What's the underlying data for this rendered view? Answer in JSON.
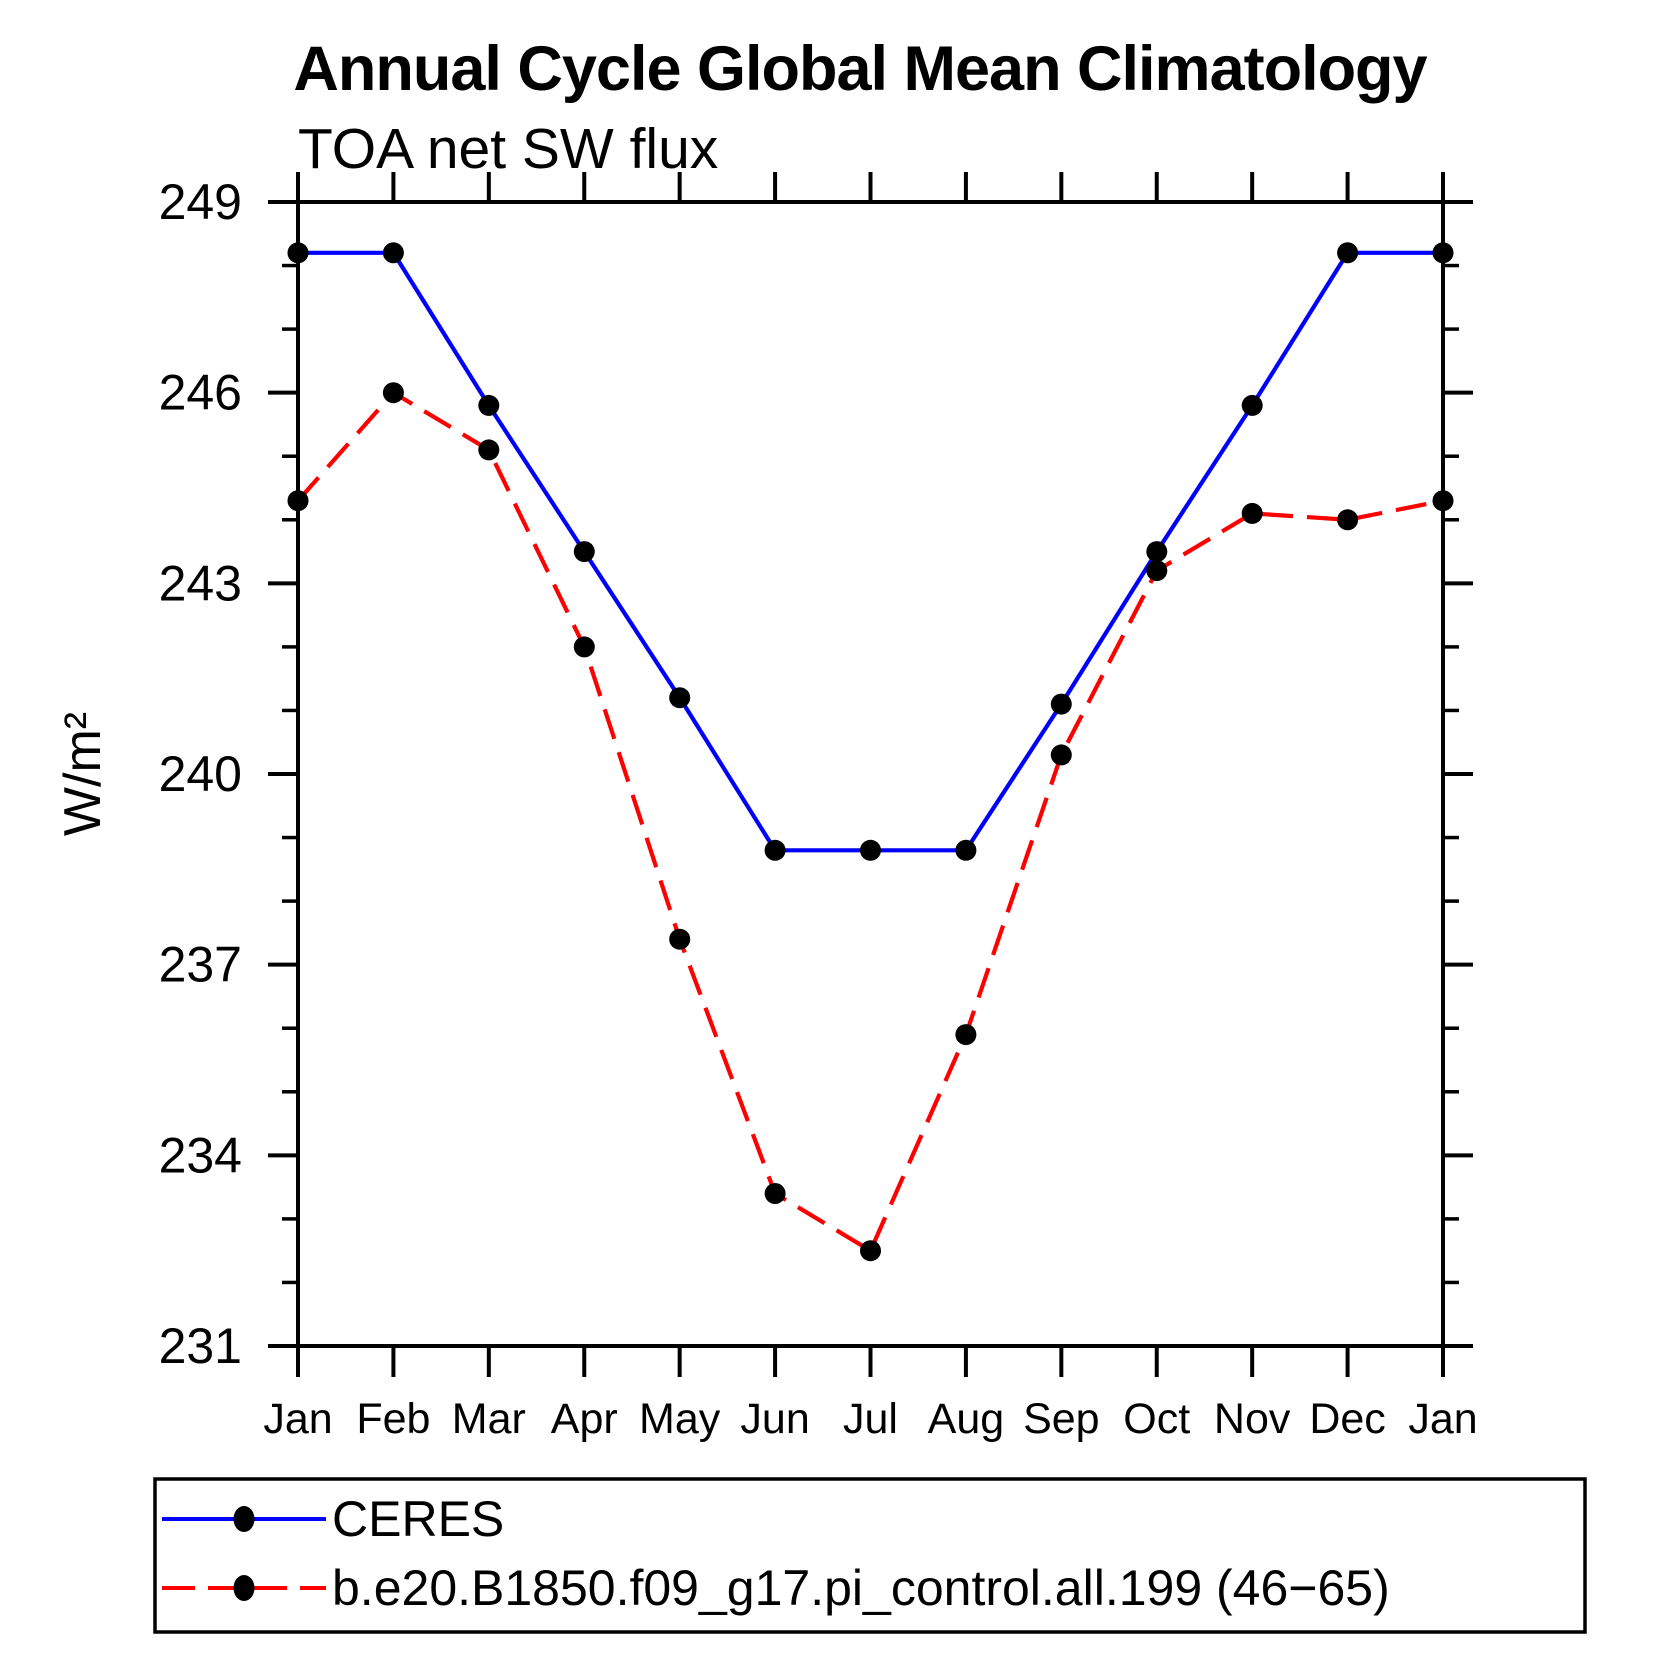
{
  "chart_data": {
    "type": "line",
    "title": "Annual Cycle Global Mean Climatology",
    "subtitle": "TOA net SW flux",
    "ylabel": "W/m²",
    "xlabel": "",
    "categories": [
      "Jan",
      "Feb",
      "Mar",
      "Apr",
      "May",
      "Jun",
      "Jul",
      "Aug",
      "Sep",
      "Oct",
      "Nov",
      "Dec",
      "Jan"
    ],
    "ylim": [
      231,
      249
    ],
    "y_ticks_major": [
      231,
      234,
      237,
      240,
      243,
      246,
      249
    ],
    "y_tick_minor_step": 1,
    "grid": false,
    "legend_position": "bottom",
    "frame_color": "#000000",
    "marker_color": "#000000",
    "series": [
      {
        "name": "CERES",
        "color": "#0000ff",
        "line_style": "solid",
        "marker": "circle",
        "values": [
          248.2,
          248.2,
          245.8,
          243.5,
          241.2,
          238.8,
          238.8,
          238.8,
          241.1,
          243.5,
          245.8,
          248.2,
          248.2
        ]
      },
      {
        "name": "b.e20.B1850.f09_g17.pi_control.all.199 (46−65)",
        "color": "#ff0000",
        "line_style": "dashed",
        "marker": "circle",
        "values": [
          244.3,
          246.0,
          245.1,
          242.0,
          237.4,
          233.4,
          232.5,
          235.9,
          240.3,
          243.2,
          244.1,
          244.0,
          244.3
        ]
      }
    ]
  }
}
